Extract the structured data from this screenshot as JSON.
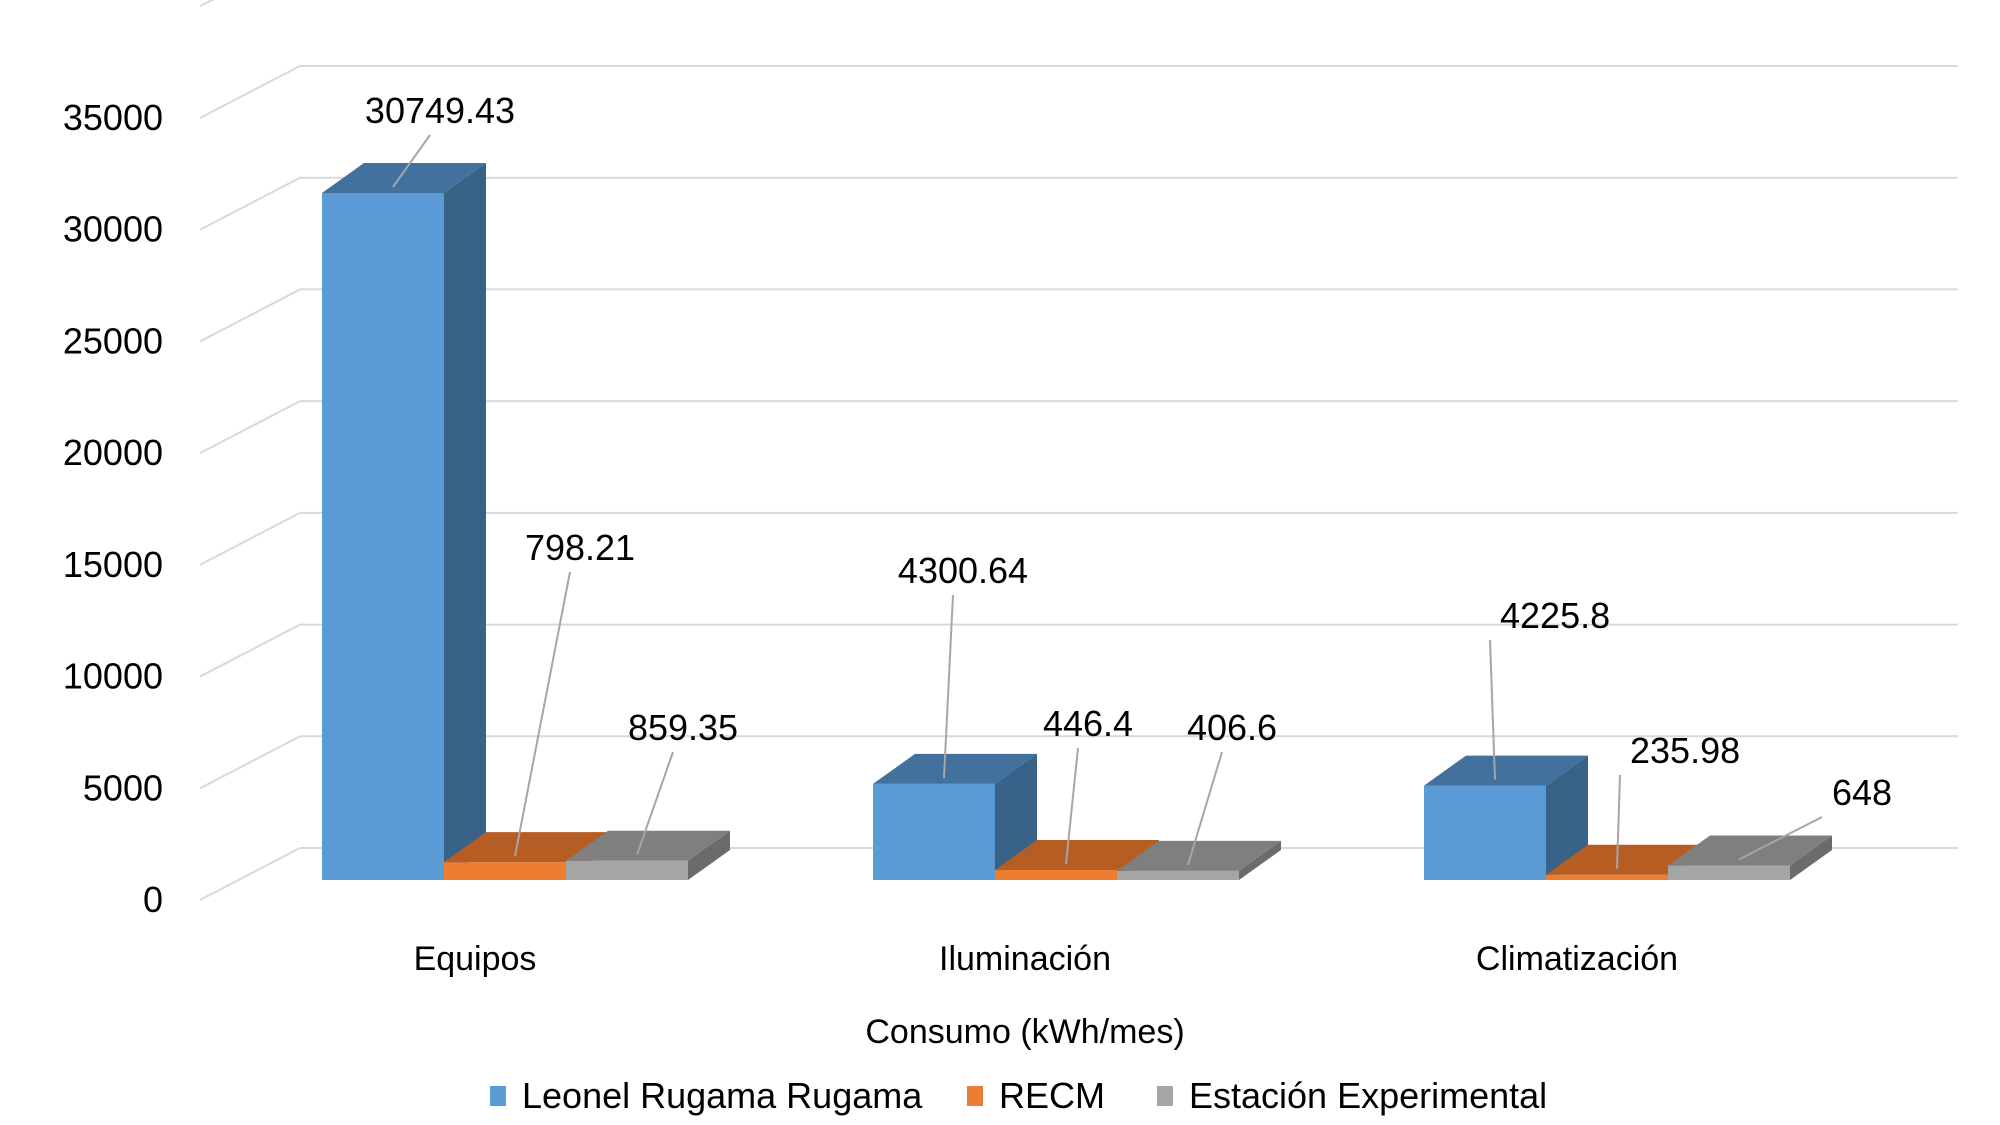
{
  "chart_data": {
    "type": "bar",
    "variant": "3d-clustered-column",
    "title": "",
    "xlabel": "Consumo (kWh/mes)",
    "ylabel": "",
    "ylim": [
      0,
      40000
    ],
    "yticks": [
      0,
      5000,
      10000,
      15000,
      20000,
      25000,
      30000,
      35000
    ],
    "ytick_labels": [
      "0",
      "5000",
      "10000",
      "15000",
      "20000",
      "25000",
      "30000",
      "35000"
    ],
    "grid": true,
    "legend_position": "bottom",
    "categories": [
      "Equipos",
      "Iluminación",
      "Climatización"
    ],
    "series": [
      {
        "name": "Leonel Rugama Rugama",
        "values": [
          30749.43,
          4300.64,
          4225.8
        ],
        "labels": [
          "30749.43",
          "4300.64",
          "4225.8"
        ],
        "color": "#5B9BD5"
      },
      {
        "name": "RECM",
        "values": [
          798.21,
          446.4,
          235.98
        ],
        "labels": [
          "798.21",
          "446.4",
          "235.98"
        ],
        "color": "#ED7D31"
      },
      {
        "name": "Estación Experimental",
        "values": [
          859.35,
          406.6,
          648
        ],
        "labels": [
          "859.35",
          "406.6",
          "648"
        ],
        "color": "#A5A5A5"
      }
    ]
  }
}
